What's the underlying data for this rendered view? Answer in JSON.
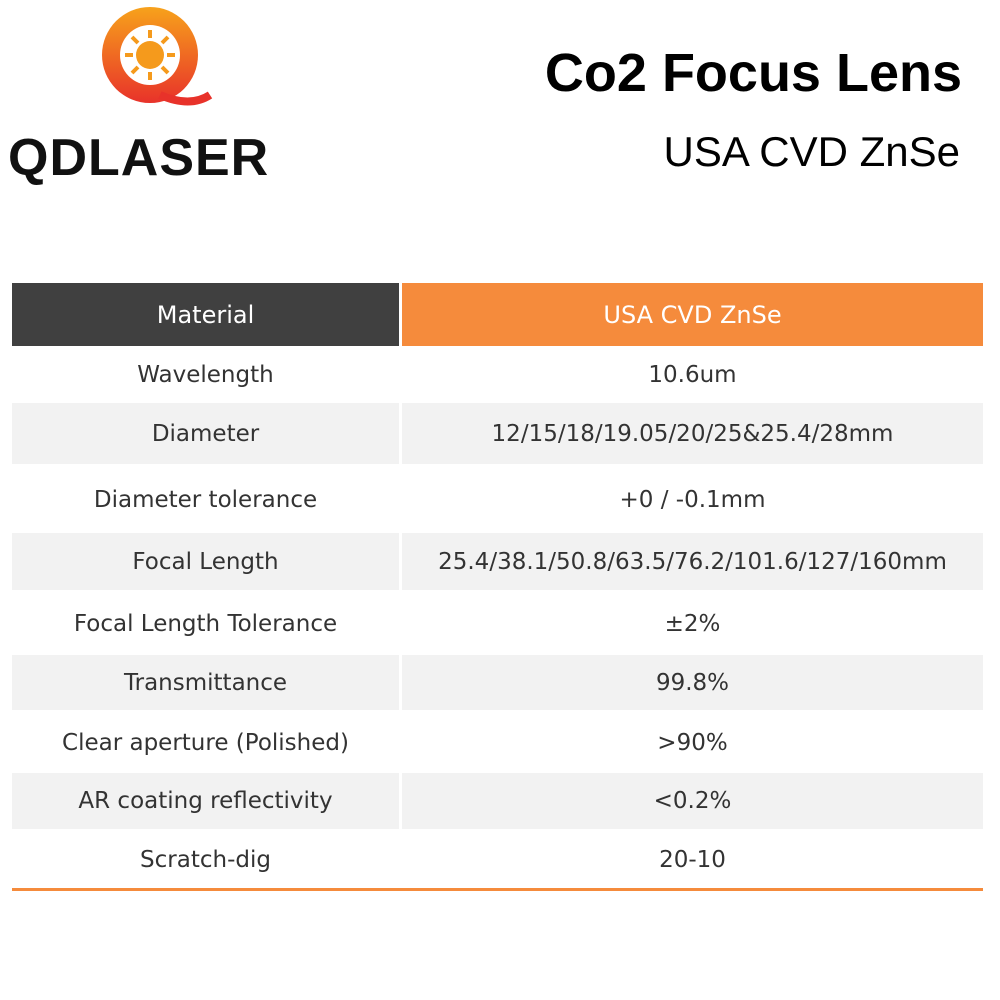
{
  "logo": {
    "text": "QDLASER"
  },
  "header": {
    "title": "Co2 Focus Lens",
    "subtitle": "USA CVD ZnSe"
  },
  "table": {
    "header": [
      "Material",
      "USA CVD ZnSe"
    ],
    "rows": [
      [
        "Wavelength",
        "10.6um"
      ],
      [
        "Diameter",
        "12/15/18/19.05/20/25&25.4/28mm"
      ],
      [
        "Diameter tolerance",
        "+0 / -0.1mm"
      ],
      [
        "Focal Length",
        "25.4/38.1/50.8/63.5/76.2/101.6/127/160mm"
      ],
      [
        "Focal Length Tolerance",
        "±2%"
      ],
      [
        "Transmittance",
        "99.8%"
      ],
      [
        "Clear aperture (Polished)",
        ">90%"
      ],
      [
        "AR coating reflectivity",
        "<0.2%"
      ],
      [
        "Scratch-dig",
        "20-10"
      ]
    ]
  }
}
